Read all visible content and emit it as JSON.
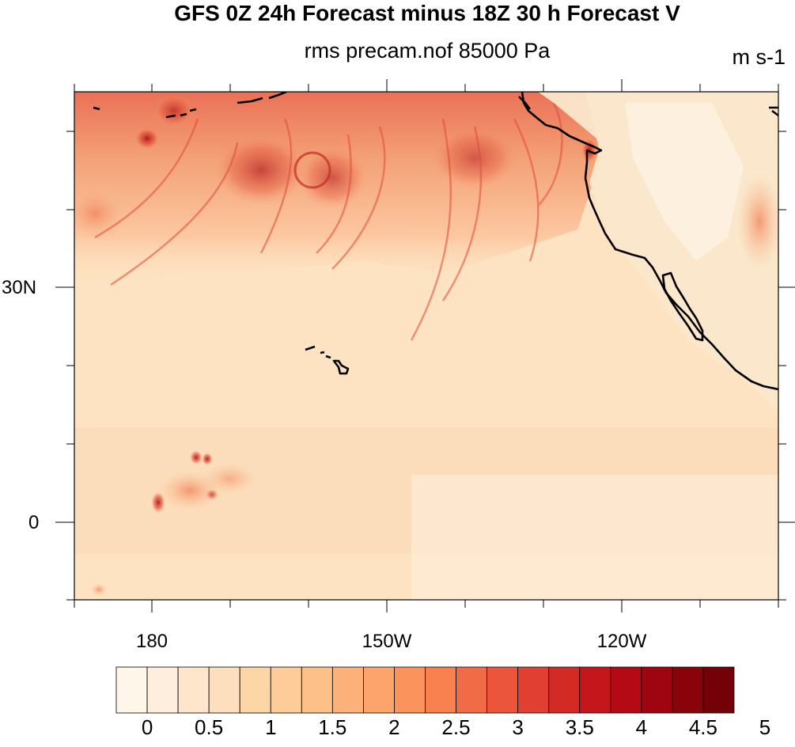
{
  "title": "GFS 0Z 24h Forecast minus 18Z 30 h Forecast V",
  "subtitle": "rms precam.nof 85000 Pa",
  "units": "m s-1",
  "map": {
    "lat_labels": [
      {
        "text": "30N",
        "lat": 30
      },
      {
        "text": "0",
        "lat": 0
      }
    ],
    "lon_labels": [
      {
        "text": "180",
        "lon": 180
      },
      {
        "text": "150W",
        "lon": -150
      },
      {
        "text": "120W",
        "lon": -120
      }
    ],
    "colors": {
      "background": "#fde3c2",
      "coastline": "#000000",
      "frame": "#000000"
    }
  },
  "colorbar": {
    "colors": [
      "#fff6ea",
      "#fdeede",
      "#fde6cc",
      "#fddfbd",
      "#fdd6a8",
      "#fdcc98",
      "#fdc088",
      "#fcb17a",
      "#fca46c",
      "#fb935d",
      "#f8814f",
      "#f26b47",
      "#ea553c",
      "#e03f31",
      "#d42a26",
      "#c5161c",
      "#b30a15",
      "#9f0510",
      "#89030b",
      "#730107"
    ],
    "labels": [
      "0",
      "0.5",
      "1",
      "1.5",
      "2",
      "2.5",
      "3",
      "3.5",
      "4",
      "4.5",
      "5"
    ]
  }
}
